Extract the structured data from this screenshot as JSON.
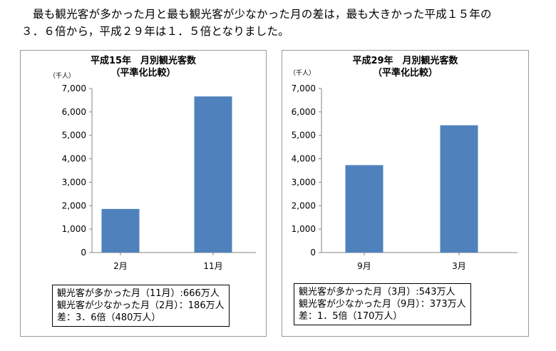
{
  "intro": {
    "line1": "最も観光客が多かった月と最も観光客が少なかった月の差は，最も大きかった平成１５年の",
    "line2": "３．６倍から，平成２９年は１．５倍となりました。"
  },
  "panels": [
    {
      "title_line1": "平成15年　月別観光客数",
      "title_line2": "（平準化比較）",
      "unit": "（千人）",
      "summary": [
        "観光客が多かった月（11月）:666万人",
        "観光客が少なかった月（2月）：186万人",
        "差：3．6倍（480万人）"
      ]
    },
    {
      "title_line1": "平成29年　月別観光客数",
      "title_line2": "（平準化比較）",
      "unit": "（千人）",
      "summary": [
        "観光客が多かった月（3月）:543万人",
        "観光客が少なかった月（9月）：373万人",
        "差：1．5倍（170万人）"
      ]
    }
  ],
  "chart_data": [
    {
      "type": "bar",
      "title": "平成15年　月別観光客数（平準化比較）",
      "categories": [
        "2月",
        "11月"
      ],
      "values": [
        1860,
        6660
      ],
      "ylim": [
        0,
        7000
      ],
      "yticks": [
        "0",
        "1,000",
        "2,000",
        "3,000",
        "4,000",
        "5,000",
        "6,000",
        "7,000"
      ],
      "ylabel": "（千人）",
      "grid": false,
      "bar_color": "#4F81BD"
    },
    {
      "type": "bar",
      "title": "平成29年　月別観光客数（平準化比較）",
      "categories": [
        "9月",
        "3月"
      ],
      "values": [
        3730,
        5430
      ],
      "ylim": [
        0,
        7000
      ],
      "yticks": [
        "0",
        "1,000",
        "2,000",
        "3,000",
        "4,000",
        "5,000",
        "6,000",
        "7,000"
      ],
      "ylabel": "（千人）",
      "grid": false,
      "bar_color": "#4F81BD"
    }
  ]
}
